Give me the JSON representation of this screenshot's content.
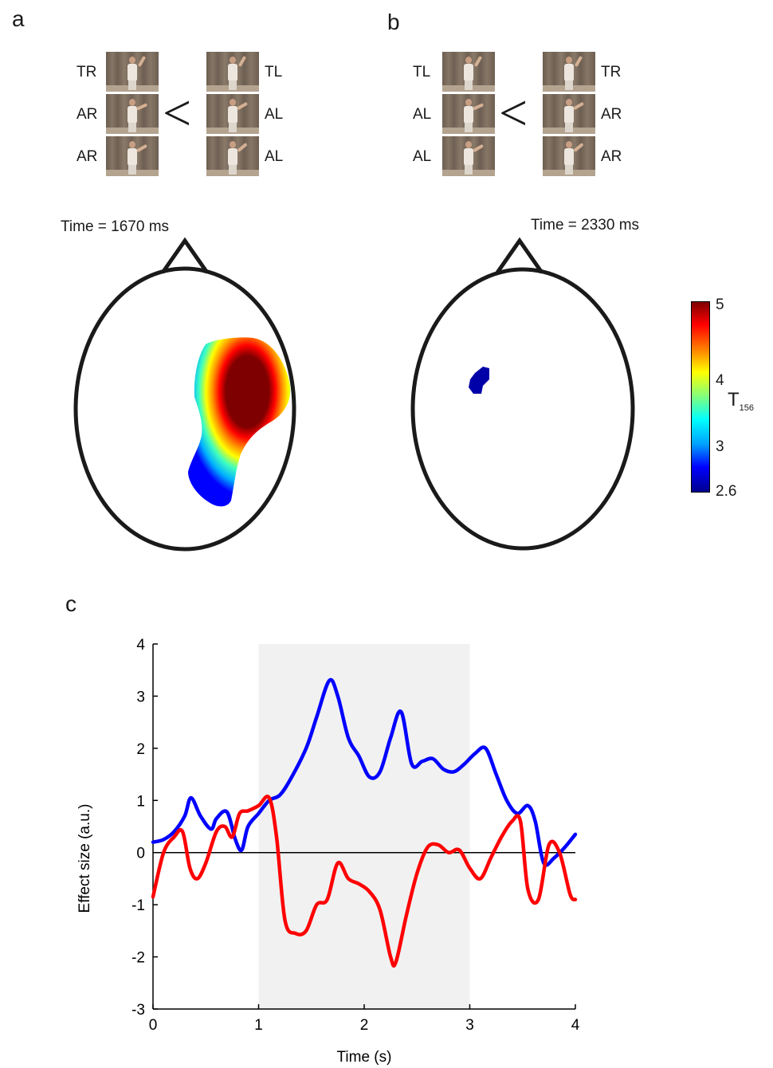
{
  "panel_a": {
    "letter": "a",
    "left_labels": [
      "TR",
      "AR",
      "AR"
    ],
    "right_labels": [
      "TL",
      "AL",
      "AL"
    ],
    "comparison_symbol": "<",
    "time_label": "Time = 1670 ms"
  },
  "panel_b": {
    "letter": "b",
    "left_labels": [
      "TL",
      "AL",
      "AL"
    ],
    "right_labels": [
      "TR",
      "AR",
      "AR"
    ],
    "comparison_symbol": "<",
    "time_label": "Time = 2330 ms"
  },
  "colorbar": {
    "ticks": [
      "5",
      "4",
      "3",
      "2.6"
    ],
    "title_main": "T",
    "title_sub": "156",
    "colormap": [
      "#00008f",
      "#0000ff",
      "#00a0ff",
      "#00ffff",
      "#7fff7f",
      "#ffff00",
      "#ff8000",
      "#ff0000",
      "#7f0000"
    ]
  },
  "panel_c": {
    "letter": "c"
  },
  "chart_data": {
    "type": "line",
    "xlabel": "Time (s)",
    "ylabel": "Effect size (a.u.)",
    "xlim": [
      0,
      4
    ],
    "ylim": [
      -3,
      4
    ],
    "xticks": [
      "0",
      "1",
      "2",
      "3",
      "4"
    ],
    "yticks": [
      "4",
      "3",
      "2",
      "1",
      "0",
      "-1",
      "-2",
      "-3"
    ],
    "shaded_interval": [
      1,
      3
    ],
    "zero_line": true,
    "series": [
      {
        "color": "#0000ff",
        "x": [
          0,
          0.1,
          0.2,
          0.3,
          0.36,
          0.45,
          0.55,
          0.6,
          0.7,
          0.78,
          0.84,
          0.9,
          1.0,
          1.1,
          1.2,
          1.3,
          1.45,
          1.55,
          1.67,
          1.75,
          1.85,
          1.95,
          2.05,
          2.15,
          2.25,
          2.35,
          2.45,
          2.55,
          2.65,
          2.75,
          2.85,
          2.95,
          3.05,
          3.15,
          3.25,
          3.35,
          3.45,
          3.55,
          3.62,
          3.7,
          3.8,
          3.9,
          4.0
        ],
        "y": [
          0.2,
          0.25,
          0.4,
          0.7,
          1.05,
          0.7,
          0.45,
          0.65,
          0.78,
          0.25,
          0.05,
          0.5,
          0.75,
          1.0,
          1.1,
          1.4,
          2.0,
          2.6,
          3.3,
          3.0,
          2.2,
          1.85,
          1.45,
          1.55,
          2.2,
          2.7,
          1.7,
          1.75,
          1.8,
          1.6,
          1.55,
          1.7,
          1.9,
          2.0,
          1.5,
          1.0,
          0.75,
          0.9,
          0.6,
          -0.2,
          -0.1,
          0.1,
          0.35
        ]
      },
      {
        "color": "#ff0000",
        "x": [
          0,
          0.1,
          0.2,
          0.28,
          0.35,
          0.42,
          0.5,
          0.6,
          0.68,
          0.75,
          0.82,
          0.9,
          1.0,
          1.1,
          1.17,
          1.25,
          1.35,
          1.45,
          1.55,
          1.65,
          1.75,
          1.85,
          1.95,
          2.05,
          2.15,
          2.25,
          2.3,
          2.4,
          2.5,
          2.6,
          2.7,
          2.8,
          2.9,
          3.0,
          3.1,
          3.2,
          3.3,
          3.4,
          3.48,
          3.55,
          3.65,
          3.75,
          3.85,
          3.95,
          4.0
        ],
        "y": [
          -0.85,
          0.0,
          0.3,
          0.4,
          -0.3,
          -0.5,
          -0.2,
          0.4,
          0.5,
          0.3,
          0.75,
          0.8,
          0.9,
          1.05,
          0.3,
          -1.3,
          -1.55,
          -1.5,
          -1.0,
          -0.9,
          -0.2,
          -0.5,
          -0.6,
          -0.75,
          -1.1,
          -2.0,
          -2.1,
          -1.2,
          -0.4,
          0.1,
          0.15,
          0.0,
          0.05,
          -0.3,
          -0.5,
          -0.1,
          0.3,
          0.6,
          0.6,
          -0.7,
          -0.9,
          0.15,
          0.0,
          -0.8,
          -0.9
        ]
      }
    ]
  }
}
